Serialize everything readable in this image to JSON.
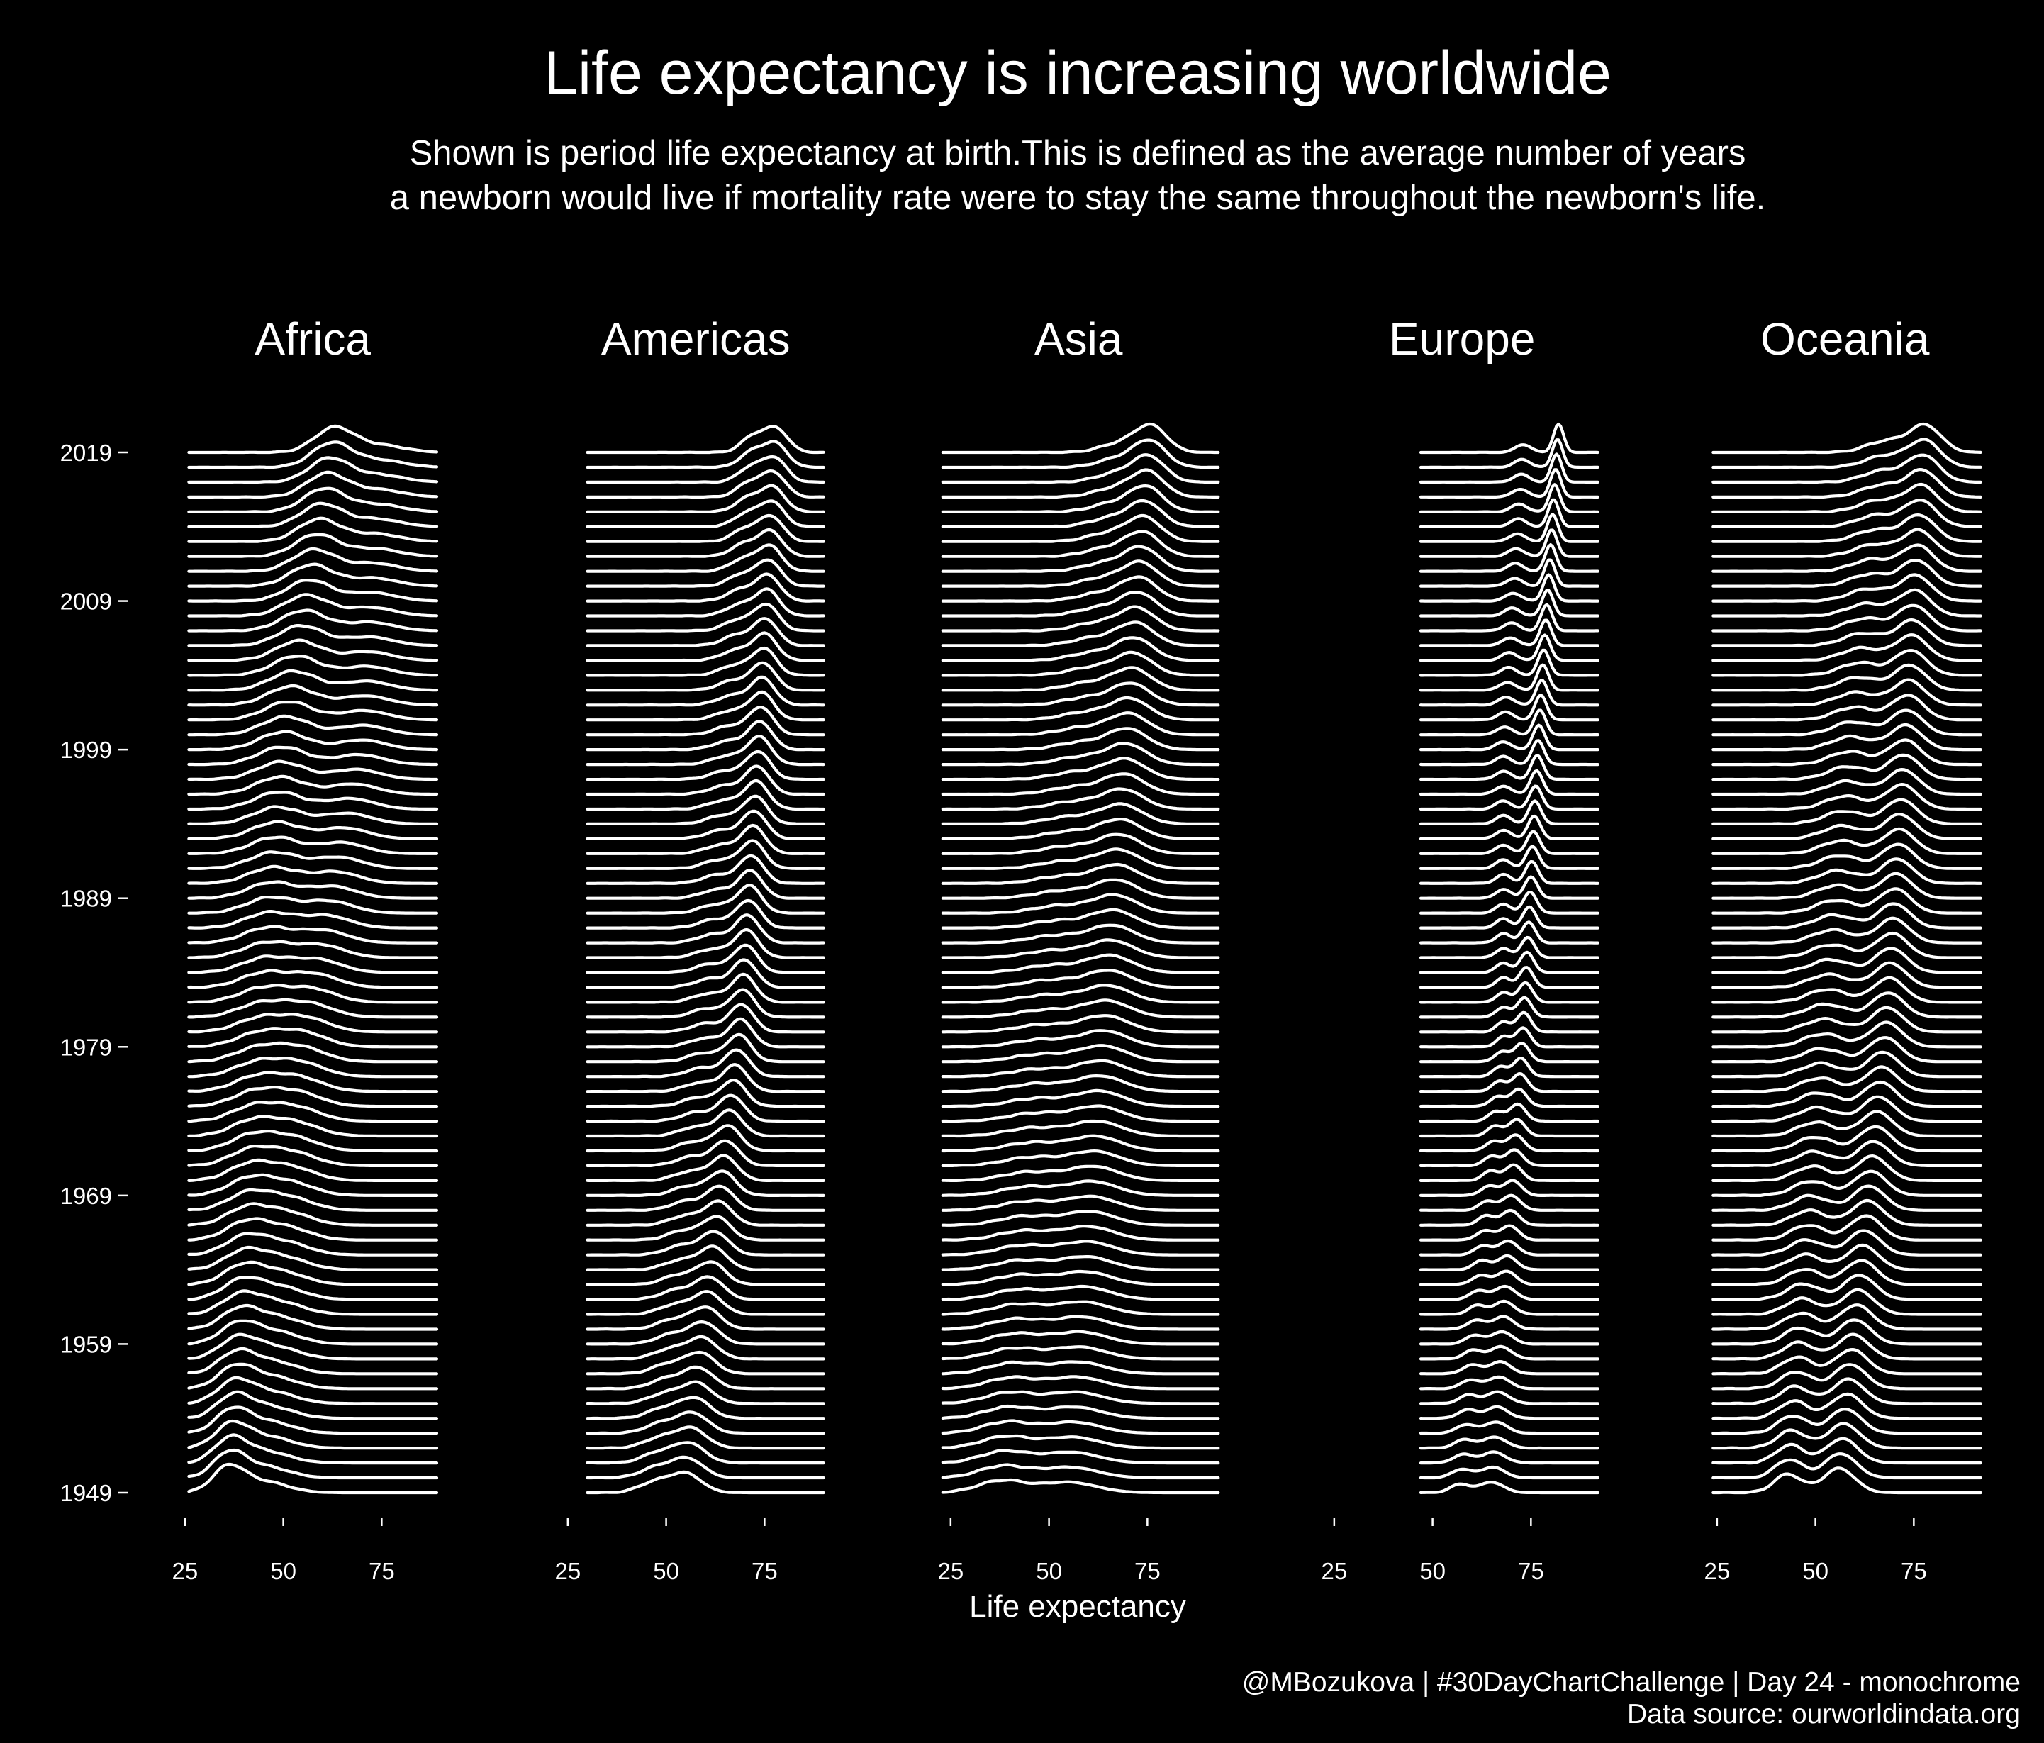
{
  "title": "Life expectancy is increasing worldwide",
  "subtitle_line1": "Shown is period life expectancy at birth.This is defined as the average number of years",
  "subtitle_line2": "a newborn would live if mortality rate were to stay the same throughout the newborn's life.",
  "caption_line1": "@MBozukova | #30DayChartChallenge | Day 24 - monochrome",
  "caption_line2": "Data source: ourworldindata.org",
  "colors": {
    "background": "#000000",
    "foreground": "#ffffff"
  },
  "chart_data": {
    "type": "ridgeline density",
    "xlabel": "Life expectancy",
    "x_ticks": [
      25,
      50,
      75
    ],
    "xlim": [
      18,
      97
    ],
    "y_ticks": [
      1949,
      1959,
      1969,
      1979,
      1989,
      1999,
      2009,
      2019
    ],
    "year_range": [
      1949,
      2019
    ],
    "facets": [
      {
        "label": "Africa",
        "x_extent": [
          26,
          89
        ],
        "modes": {
          "1949": [
            {
              "mean": 36,
              "sd": 4,
              "weight": 0.6
            },
            {
              "mean": 45,
              "sd": 6,
              "weight": 0.4
            }
          ],
          "1979": [
            {
              "mean": 44,
              "sd": 6,
              "weight": 0.5
            },
            {
              "mean": 55,
              "sd": 6,
              "weight": 0.5
            }
          ],
          "1999": [
            {
              "mean": 50,
              "sd": 6,
              "weight": 0.65
            },
            {
              "mean": 70,
              "sd": 6,
              "weight": 0.35
            }
          ],
          "2019": [
            {
              "mean": 63,
              "sd": 5,
              "weight": 0.75
            },
            {
              "mean": 75,
              "sd": 6,
              "weight": 0.25
            }
          ]
        }
      },
      {
        "label": "Americas",
        "x_extent": [
          30,
          90
        ],
        "modes": {
          "1949": [
            {
              "mean": 47,
              "sd": 4,
              "weight": 0.35
            },
            {
              "mean": 55,
              "sd": 4,
              "weight": 0.65
            }
          ],
          "1979": [
            {
              "mean": 60,
              "sd": 4,
              "weight": 0.3
            },
            {
              "mean": 69,
              "sd": 3,
              "weight": 0.7
            }
          ],
          "1999": [
            {
              "mean": 66,
              "sd": 4,
              "weight": 0.3
            },
            {
              "mean": 74,
              "sd": 3,
              "weight": 0.7
            }
          ],
          "2019": [
            {
              "mean": 72,
              "sd": 3,
              "weight": 0.4
            },
            {
              "mean": 78,
              "sd": 3,
              "weight": 0.6
            }
          ]
        }
      },
      {
        "label": "Asia",
        "x_extent": [
          23,
          93
        ],
        "modes": {
          "1949": [
            {
              "mean": 38,
              "sd": 6,
              "weight": 0.5
            },
            {
              "mean": 55,
              "sd": 7,
              "weight": 0.5
            }
          ],
          "1979": [
            {
              "mean": 48,
              "sd": 7,
              "weight": 0.35
            },
            {
              "mean": 64,
              "sd": 6,
              "weight": 0.65
            }
          ],
          "1999": [
            {
              "mean": 58,
              "sd": 6,
              "weight": 0.3
            },
            {
              "mean": 70,
              "sd": 5,
              "weight": 0.7
            }
          ],
          "2019": [
            {
              "mean": 68,
              "sd": 5,
              "weight": 0.3
            },
            {
              "mean": 76,
              "sd": 4,
              "weight": 0.7
            }
          ]
        }
      },
      {
        "label": "Europe",
        "x_extent": [
          47,
          92
        ],
        "modes": {
          "1949": [
            {
              "mean": 57,
              "sd": 2.5,
              "weight": 0.4
            },
            {
              "mean": 65,
              "sd": 3,
              "weight": 0.6
            }
          ],
          "1979": [
            {
              "mean": 68,
              "sd": 1.8,
              "weight": 0.35
            },
            {
              "mean": 73,
              "sd": 1.8,
              "weight": 0.65
            }
          ],
          "1999": [
            {
              "mean": 68,
              "sd": 2,
              "weight": 0.3
            },
            {
              "mean": 77,
              "sd": 1.5,
              "weight": 0.7
            }
          ],
          "2019": [
            {
              "mean": 73,
              "sd": 2,
              "weight": 0.3
            },
            {
              "mean": 82,
              "sd": 1.3,
              "weight": 0.7
            }
          ]
        }
      },
      {
        "label": "Oceania",
        "x_extent": [
          24,
          92
        ],
        "modes": {
          "1949": [
            {
              "mean": 43,
              "sd": 3.5,
              "weight": 0.4
            },
            {
              "mean": 56,
              "sd": 4,
              "weight": 0.6
            }
          ],
          "1979": [
            {
              "mean": 52,
              "sd": 5,
              "weight": 0.4
            },
            {
              "mean": 68,
              "sd": 4,
              "weight": 0.6
            }
          ],
          "1999": [
            {
              "mean": 59,
              "sd": 5,
              "weight": 0.4
            },
            {
              "mean": 73,
              "sd": 4,
              "weight": 0.6
            }
          ],
          "2019": [
            {
              "mean": 68,
              "sd": 5,
              "weight": 0.35
            },
            {
              "mean": 78,
              "sd": 4,
              "weight": 0.65
            }
          ]
        }
      }
    ]
  }
}
